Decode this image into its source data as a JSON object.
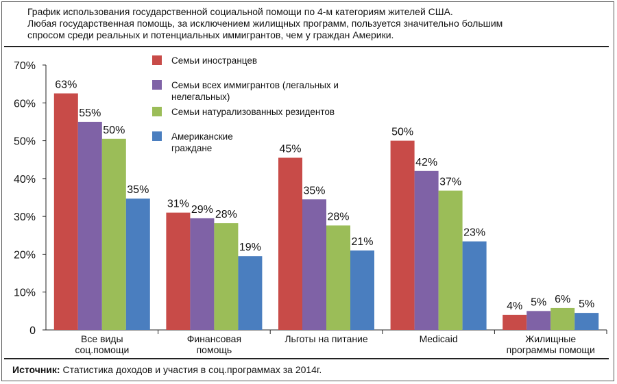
{
  "header": {
    "title_lines": [
      "График использования государственной социальной помощи по 4-м категориям жителей США.",
      "Любая государственная помощь, за исключением жилищных программ, пользуется значительно большим",
      "спросом среди реальных и потенциальных иммигрантов, чем у граждан Америки."
    ]
  },
  "footer": {
    "source_label": "Источник:",
    "source_text": " Статистика доходов и участия в соц.программах за 2014г."
  },
  "colors": {
    "foreign_families": "#c84b48",
    "all_immigrant_families": "#7f62a6",
    "naturalized": "#9bbd58",
    "citizens": "#4a7ebf"
  },
  "chart_data": {
    "type": "bar",
    "title": "График использования государственной социальной помощи по 4-м категориям жителей США.",
    "xlabel": "",
    "ylabel": "",
    "ylim": [
      0,
      70
    ],
    "yticks": [
      "0",
      "10%",
      "20%",
      "30%",
      "40%",
      "50%",
      "60%",
      "70%"
    ],
    "ytick_values": [
      0,
      10,
      20,
      30,
      40,
      50,
      60,
      70
    ],
    "categories": [
      [
        "Все виды",
        "соц.помощи"
      ],
      [
        "Финансовая",
        "помощь"
      ],
      [
        "Льготы на питание"
      ],
      [
        "Medicaid"
      ],
      [
        "Жилищные",
        "программы помощи"
      ]
    ],
    "series": [
      {
        "name": [
          "Семьи иностранцев"
        ],
        "color_key": "foreign_families",
        "values": [
          62.5,
          31,
          45.5,
          50,
          4
        ],
        "labels": [
          "63%",
          "31%",
          "45%",
          "50%",
          "4%"
        ]
      },
      {
        "name": [
          "Семьи всех иммигрантов (легальных и",
          "нелегальных)"
        ],
        "color_key": "all_immigrant_families",
        "values": [
          55,
          29.5,
          34.5,
          42,
          5
        ],
        "labels": [
          "55%",
          "29%",
          "35%",
          "42%",
          "5%"
        ]
      },
      {
        "name": [
          "Семьи натурализованных резидентов"
        ],
        "color_key": "naturalized",
        "values": [
          50.5,
          28.2,
          27.6,
          36.8,
          5.8
        ],
        "labels": [
          "50%",
          "28%",
          "28%",
          "37%",
          "6%"
        ]
      },
      {
        "name": [
          "Американские",
          "граждане"
        ],
        "color_key": "citizens",
        "values": [
          34.7,
          19.5,
          21,
          23.4,
          4.5
        ],
        "labels": [
          "35%",
          "19%",
          "21%",
          "23%",
          "5%"
        ]
      }
    ],
    "legend_position": "top-left-inside",
    "grid": false
  }
}
